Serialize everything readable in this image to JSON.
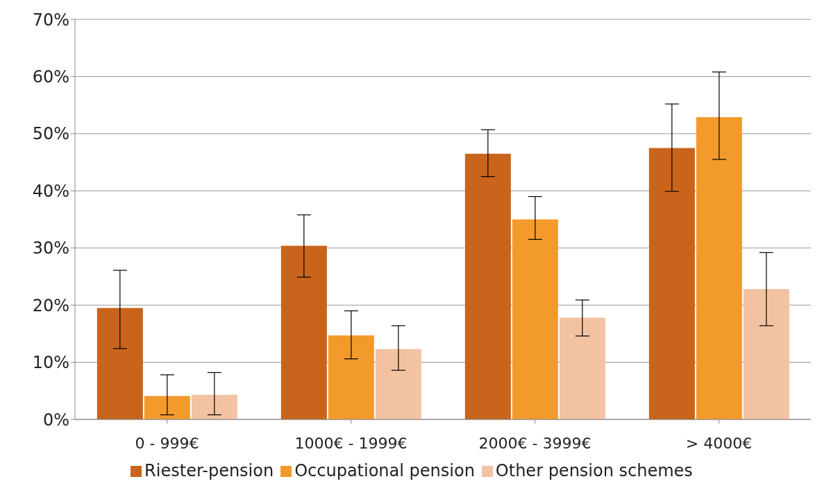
{
  "chart_data": {
    "type": "bar",
    "categories": [
      "0 - 999€",
      "1000€ - 1999€",
      "2000€ - 3999€",
      "> 4000€"
    ],
    "series": [
      {
        "name": "Riester-pension",
        "color": "#c8641c",
        "values": [
          19.5,
          30.4,
          46.5,
          47.5
        ],
        "errors": [
          [
            12.4,
            26.1
          ],
          [
            24.9,
            35.8
          ],
          [
            42.5,
            50.7
          ],
          [
            39.9,
            55.2
          ]
        ]
      },
      {
        "name": "Occupational pension",
        "color": "#f39a2c",
        "values": [
          4.1,
          14.7,
          35,
          52.9
        ],
        "errors": [
          [
            0.8,
            7.8
          ],
          [
            10.6,
            19
          ],
          [
            31.5,
            39
          ],
          [
            45.5,
            60.8
          ]
        ]
      },
      {
        "name": "Other pension schemes",
        "color": "#f2c2a2",
        "values": [
          4.3,
          12.3,
          17.8,
          22.8
        ],
        "errors": [
          [
            0.8,
            8.2
          ],
          [
            8.6,
            16.4
          ],
          [
            14.6,
            20.9
          ],
          [
            16.4,
            29.2
          ]
        ]
      }
    ],
    "ylim": [
      0,
      70
    ],
    "yticks": [
      {
        "value": 0,
        "label": "0%"
      },
      {
        "value": 10,
        "label": "10%"
      },
      {
        "value": 20,
        "label": "20%"
      },
      {
        "value": 30,
        "label": "30%"
      },
      {
        "value": 40,
        "label": "40%"
      },
      {
        "value": 50,
        "label": "50%"
      },
      {
        "value": 60,
        "label": "60%"
      },
      {
        "value": 70,
        "label": "70%"
      }
    ],
    "grid": "y",
    "legend": "bottom"
  }
}
